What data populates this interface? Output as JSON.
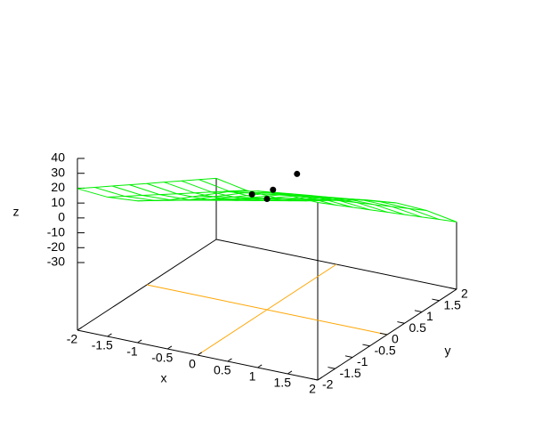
{
  "chart_data": {
    "type": "surface",
    "x": [
      -2,
      -1.5,
      -1,
      -0.5,
      0,
      0.5,
      1,
      1.5,
      2
    ],
    "y": [
      -2,
      -1.5,
      -1,
      -0.5,
      0,
      0.5,
      1,
      1.5,
      2
    ],
    "z": [
      [
        19.7,
        18.2,
        19.8,
        24.5,
        31.5,
        38.5,
        43.2,
        44.8,
        43.9
      ],
      [
        12.9,
        11.1,
        12.4,
        16.8,
        23.5,
        30.2,
        34.6,
        35.9,
        34.6
      ],
      [
        6.2,
        4.1,
        5.0,
        9.2,
        15.5,
        21.8,
        26.0,
        26.9,
        25.4
      ],
      [
        -0.6,
        -3.0,
        -2.4,
        1.5,
        7.5,
        13.5,
        17.4,
        18.0,
        16.1
      ],
      [
        -7.4,
        -10.1,
        -9.7,
        -6.2,
        -0.5,
        5.2,
        8.7,
        9.1,
        6.9
      ],
      [
        -14.1,
        -17.1,
        -17.1,
        -13.9,
        -8.5,
        -3.1,
        0.1,
        0.1,
        -2.4
      ],
      [
        -20.9,
        -24.2,
        -24.5,
        -21.6,
        -16.5,
        -11.4,
        -8.5,
        -8.8,
        -11.7
      ],
      [
        -27.6,
        -31.2,
        -31.9,
        -29.3,
        -24.5,
        -19.7,
        -17.2,
        -17.8,
        -20.9
      ],
      [
        -34.4,
        -38.3,
        -39.2,
        -37.0,
        -32.5,
        -28.0,
        -25.8,
        -26.7,
        -30.2
      ]
    ],
    "color": "#00ee00",
    "points": {
      "x": [
        -0.25,
        0,
        0.1,
        0.5
      ],
      "y": [
        0,
        0,
        0,
        0
      ],
      "z": [
        0,
        -1,
        6,
        20
      ],
      "color": "#000000"
    },
    "xlim": [
      -2,
      2
    ],
    "ylim": [
      -2,
      2
    ],
    "zlim": [
      -30,
      40
    ],
    "xticks": [
      -2,
      -1.5,
      -1,
      -0.5,
      0,
      0.5,
      1,
      1.5,
      2
    ],
    "yticks": [
      -2,
      -1.5,
      -1,
      -0.5,
      0,
      0.5,
      1,
      1.5,
      2
    ],
    "zticks": [
      -30,
      -20,
      -10,
      0,
      10,
      20,
      30,
      40
    ],
    "xlabel": "x",
    "ylabel": "y",
    "zlabel": "z",
    "zeroaxis": true,
    "zeroaxis_color": "#ffa500"
  }
}
